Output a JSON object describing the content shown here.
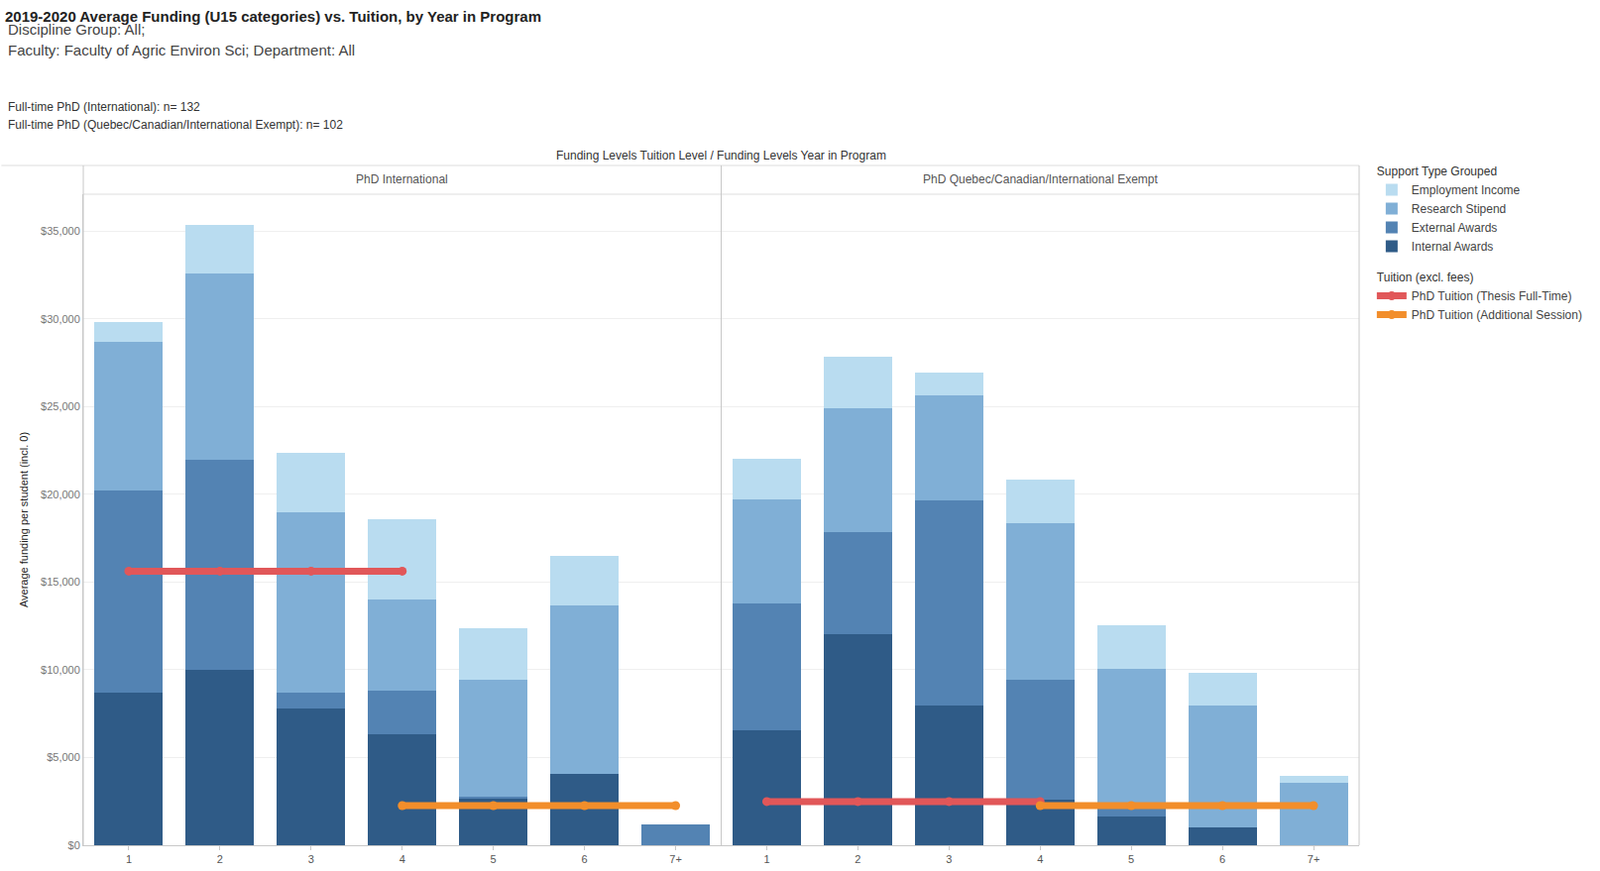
{
  "chart_data": {
    "type": "bar",
    "stacked": true,
    "grid": true,
    "legend": "right",
    "title": "2019-2020 Average Funding (U15 categories) vs. Tuition, by Year in Program",
    "subtitle": [
      "Discipline Group: All;",
      "Faculty: Faculty of Agric Environ Sci; Department: All"
    ],
    "notes": [
      "Full-time PhD (International): n= 132",
      "Full-time PhD (Quebec/Canadian/International Exempt): n= 102"
    ],
    "header": "Funding Levels Tuition Level / Funding Levels Year in Program",
    "ylabel": "Average funding per student (incl. 0)",
    "categories": [
      "1",
      "2",
      "3",
      "4",
      "5",
      "6",
      "7+"
    ],
    "ylim": [
      0,
      37100
    ],
    "yticks": [
      {
        "value": 0,
        "label": "$0"
      },
      {
        "value": 5000,
        "label": "$5,000"
      },
      {
        "value": 10000,
        "label": "$10,000"
      },
      {
        "value": 15000,
        "label": "$15,000"
      },
      {
        "value": 20000,
        "label": "$20,000"
      },
      {
        "value": 25000,
        "label": "$25,000"
      },
      {
        "value": 30000,
        "label": "$30,000"
      },
      {
        "value": 35000,
        "label": "$35,000"
      }
    ],
    "panels": [
      {
        "title": "PhD International",
        "series": [
          {
            "name": "Internal Awards",
            "group": "Support Type Grouped",
            "type": "bar",
            "color": "#2f5b87",
            "values": [
              8680,
              10000,
              7800,
              6350,
              2650,
              4050,
              0
            ]
          },
          {
            "name": "External Awards",
            "group": "Support Type Grouped",
            "type": "bar",
            "color": "#5383b3",
            "values": [
              11510,
              11980,
              880,
              2450,
              120,
              0,
              1200
            ]
          },
          {
            "name": "Research Stipend",
            "group": "Support Type Grouped",
            "type": "bar",
            "color": "#80afd6",
            "values": [
              8500,
              10590,
              10290,
              5200,
              6650,
              9600,
              0
            ]
          },
          {
            "name": "Employment Income",
            "group": "Support Type Grouped",
            "type": "bar",
            "color": "#b9dcf0",
            "values": [
              1100,
              2780,
              3420,
              4570,
              2950,
              2840,
              0
            ]
          },
          {
            "name": "PhD Tuition (Thesis Full-Time)",
            "group": "Tuition (excl. fees)",
            "type": "line",
            "color": "#e15759",
            "values": [
              15620,
              15620,
              15620,
              15620,
              null,
              null,
              null
            ]
          },
          {
            "name": "PhD Tuition (Additional Session)",
            "group": "Tuition (excl. fees)",
            "type": "line",
            "color": "#f28e2b",
            "values": [
              null,
              null,
              null,
              2260,
              2260,
              2260,
              2260
            ]
          }
        ]
      },
      {
        "title": "PhD Quebec/Canadian/International Exempt",
        "series": [
          {
            "name": "Internal Awards",
            "group": "Support Type Grouped",
            "type": "bar",
            "color": "#2f5b87",
            "values": [
              6540,
              12030,
              7980,
              2600,
              1620,
              1040,
              0
            ]
          },
          {
            "name": "External Awards",
            "group": "Support Type Grouped",
            "type": "bar",
            "color": "#5383b3",
            "values": [
              7230,
              5790,
              11690,
              6830,
              460,
              0,
              0
            ]
          },
          {
            "name": "Research Stipend",
            "group": "Support Type Grouped",
            "type": "bar",
            "color": "#80afd6",
            "values": [
              5960,
              7060,
              5960,
              8910,
              7990,
              6940,
              3530
            ]
          },
          {
            "name": "Employment Income",
            "group": "Support Type Grouped",
            "type": "bar",
            "color": "#b9dcf0",
            "values": [
              2310,
              2950,
              1330,
              2490,
              2480,
              1850,
              400
            ]
          },
          {
            "name": "PhD Tuition (Thesis Full-Time)",
            "group": "Tuition (excl. fees)",
            "type": "line",
            "color": "#e15759",
            "values": [
              2490,
              2490,
              2490,
              2490,
              null,
              null,
              null
            ]
          },
          {
            "name": "PhD Tuition (Additional Session)",
            "group": "Tuition (excl. fees)",
            "type": "line",
            "color": "#f28e2b",
            "values": [
              null,
              null,
              null,
              2260,
              2260,
              2260,
              2260
            ]
          }
        ]
      }
    ]
  }
}
